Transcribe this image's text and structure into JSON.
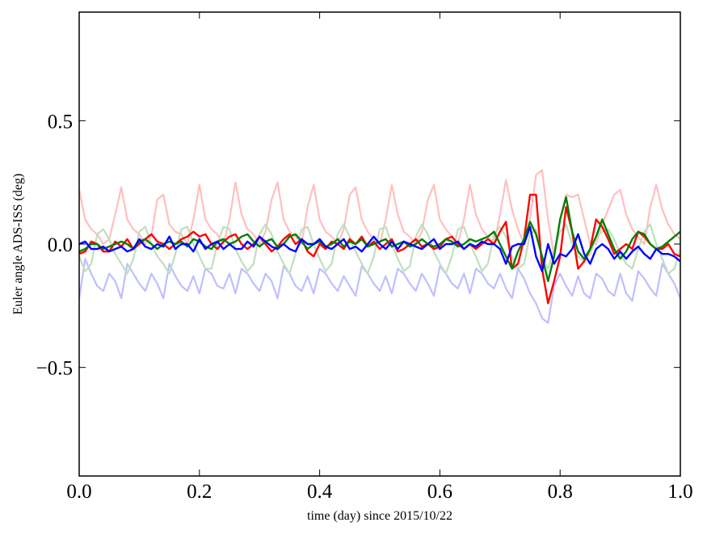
{
  "chart_data": {
    "type": "line",
    "title": "",
    "xlabel": "time (day) since 2015/10/22",
    "ylabel": "Euler angle ADS-ISS (deg)",
    "xlim": [
      0.0,
      1.0
    ],
    "ylim": [
      -0.94,
      0.94
    ],
    "grid": false,
    "x_ticks": [
      0.0,
      0.2,
      0.4,
      0.6,
      0.8,
      1.0
    ],
    "x_tick_labels": [
      "0.0",
      "0.2",
      "0.4",
      "0.6",
      "0.8",
      "1.0"
    ],
    "y_ticks": [
      -0.5,
      0.0,
      0.5
    ],
    "y_tick_labels": [
      "−0.5",
      "0.0",
      "0.5"
    ],
    "x_start": 0.0,
    "x_step": 0.01,
    "series": [
      {
        "name": "light-red",
        "color": "#ffbfbf",
        "values": [
          0.22,
          0.1,
          0.06,
          0.04,
          0.0,
          0.02,
          0.12,
          0.23,
          0.1,
          0.06,
          0.04,
          0.0,
          0.03,
          0.18,
          0.2,
          0.08,
          0.05,
          0.04,
          0.0,
          0.1,
          0.24,
          0.1,
          0.06,
          0.04,
          0.0,
          0.1,
          0.25,
          0.12,
          0.06,
          0.04,
          0.0,
          0.05,
          0.18,
          0.25,
          0.1,
          0.05,
          0.03,
          0.0,
          0.15,
          0.24,
          0.1,
          0.05,
          0.03,
          0.0,
          0.06,
          0.2,
          0.23,
          0.1,
          0.05,
          0.02,
          0.0,
          0.1,
          0.24,
          0.12,
          0.05,
          0.03,
          0.0,
          0.05,
          0.18,
          0.24,
          0.1,
          0.06,
          0.03,
          0.0,
          0.1,
          0.24,
          0.12,
          0.06,
          0.03,
          0.0,
          0.12,
          0.26,
          0.14,
          0.06,
          0.0,
          0.1,
          0.28,
          0.3,
          0.1,
          -0.05,
          0.1,
          0.2,
          0.19,
          0.2,
          0.1,
          0.0,
          0.0,
          0.08,
          0.14,
          0.2,
          0.22,
          0.12,
          0.06,
          0.03,
          0.0,
          0.15,
          0.24,
          0.14,
          0.08,
          0.04,
          0.02
        ]
      },
      {
        "name": "light-blue",
        "color": "#bfbfff",
        "values": [
          -0.22,
          -0.06,
          -0.12,
          -0.17,
          -0.19,
          -0.12,
          -0.15,
          -0.22,
          -0.08,
          -0.12,
          -0.16,
          -0.19,
          -0.12,
          -0.16,
          -0.22,
          -0.08,
          -0.13,
          -0.17,
          -0.19,
          -0.13,
          -0.2,
          -0.1,
          -0.12,
          -0.17,
          -0.18,
          -0.12,
          -0.2,
          -0.1,
          -0.12,
          -0.16,
          -0.19,
          -0.12,
          -0.15,
          -0.22,
          -0.09,
          -0.12,
          -0.17,
          -0.19,
          -0.13,
          -0.2,
          -0.1,
          -0.12,
          -0.16,
          -0.19,
          -0.13,
          -0.17,
          -0.21,
          -0.09,
          -0.12,
          -0.16,
          -0.19,
          -0.13,
          -0.2,
          -0.1,
          -0.12,
          -0.16,
          -0.19,
          -0.12,
          -0.16,
          -0.21,
          -0.09,
          -0.12,
          -0.16,
          -0.18,
          -0.12,
          -0.2,
          -0.1,
          -0.12,
          -0.16,
          -0.18,
          -0.12,
          -0.18,
          -0.22,
          -0.1,
          -0.14,
          -0.2,
          -0.24,
          -0.3,
          -0.32,
          -0.17,
          -0.12,
          -0.17,
          -0.21,
          -0.13,
          -0.2,
          -0.22,
          -0.12,
          -0.14,
          -0.19,
          -0.21,
          -0.12,
          -0.2,
          -0.23,
          -0.11,
          -0.14,
          -0.18,
          -0.21,
          -0.08,
          -0.12,
          -0.16,
          -0.22
        ]
      },
      {
        "name": "light-green",
        "color": "#bfdfbf",
        "values": [
          -0.05,
          -0.11,
          -0.08,
          0.04,
          0.06,
          0.02,
          -0.04,
          -0.08,
          -0.12,
          -0.06,
          0.05,
          0.07,
          0.0,
          -0.05,
          -0.08,
          -0.12,
          -0.04,
          0.06,
          0.07,
          0.0,
          -0.05,
          -0.1,
          -0.1,
          0.0,
          0.07,
          0.06,
          -0.02,
          -0.07,
          -0.11,
          -0.08,
          0.04,
          0.08,
          0.04,
          -0.03,
          -0.08,
          -0.12,
          -0.04,
          0.06,
          0.07,
          0.0,
          -0.06,
          -0.11,
          -0.08,
          0.04,
          0.08,
          0.03,
          -0.03,
          -0.08,
          -0.12,
          -0.05,
          0.06,
          0.07,
          0.0,
          -0.06,
          -0.11,
          -0.09,
          0.03,
          0.08,
          0.04,
          -0.03,
          -0.08,
          -0.12,
          -0.05,
          0.06,
          0.07,
          0.0,
          -0.05,
          -0.11,
          -0.08,
          0.04,
          0.07,
          0.03,
          -0.05,
          -0.1,
          -0.08,
          0.04,
          0.06,
          -0.05,
          -0.1,
          -0.02,
          0.05,
          0.08,
          0.0,
          -0.05,
          -0.07,
          -0.04,
          0.03,
          0.05,
          0.06,
          0.02,
          -0.04,
          -0.08,
          -0.1,
          -0.02,
          0.05,
          0.08,
          0.0,
          -0.06,
          -0.12,
          -0.1,
          -0.02
        ]
      },
      {
        "name": "red",
        "color": "#ff0000",
        "values": [
          -0.04,
          -0.03,
          0.01,
          0.0,
          -0.03,
          -0.03,
          0.01,
          -0.01,
          0.02,
          -0.02,
          0.0,
          0.02,
          0.04,
          0.01,
          0.0,
          -0.02,
          0.0,
          0.02,
          0.03,
          0.05,
          0.03,
          0.04,
          0.0,
          -0.02,
          0.01,
          0.03,
          0.04,
          0.0,
          -0.02,
          0.0,
          0.03,
          0.0,
          -0.03,
          -0.01,
          0.02,
          0.04,
          0.0,
          0.02,
          -0.03,
          -0.05,
          0.0,
          -0.02,
          0.01,
          0.0,
          -0.02,
          0.02,
          0.0,
          0.03,
          -0.01,
          0.01,
          -0.02,
          0.0,
          0.02,
          -0.03,
          -0.02,
          0.0,
          0.02,
          -0.01,
          0.0,
          -0.02,
          -0.01,
          0.02,
          0.03,
          0.0,
          -0.02,
          0.0,
          -0.02,
          0.0,
          0.02,
          0.0,
          0.05,
          0.09,
          -0.1,
          -0.08,
          0.02,
          0.2,
          0.2,
          -0.1,
          -0.24,
          -0.15,
          -0.05,
          0.15,
          0.05,
          -0.1,
          -0.07,
          -0.02,
          0.1,
          0.07,
          0.02,
          -0.04,
          -0.02,
          0.0,
          -0.02,
          0.05,
          0.03,
          0.0,
          -0.02,
          -0.02,
          0.0,
          -0.04,
          -0.05
        ]
      },
      {
        "name": "green",
        "color": "#008000",
        "values": [
          -0.03,
          -0.02,
          0.0,
          0.0,
          -0.02,
          -0.01,
          0.0,
          0.01,
          0.0,
          -0.02,
          0.01,
          0.02,
          0.0,
          -0.02,
          0.0,
          0.01,
          0.0,
          0.01,
          -0.01,
          0.02,
          0.01,
          -0.01,
          -0.02,
          0.01,
          0.02,
          0.0,
          0.01,
          0.03,
          0.04,
          0.01,
          -0.01,
          0.01,
          0.02,
          -0.01,
          0.0,
          0.03,
          0.04,
          0.01,
          -0.02,
          0.0,
          0.01,
          -0.01,
          0.0,
          0.02,
          -0.01,
          0.01,
          0.0,
          0.02,
          -0.01,
          0.0,
          0.01,
          0.02,
          -0.01,
          0.0,
          0.01,
          -0.01,
          0.0,
          0.02,
          0.0,
          -0.01,
          0.0,
          0.02,
          0.01,
          -0.01,
          0.0,
          0.02,
          0.01,
          0.02,
          0.03,
          0.05,
          0.0,
          -0.05,
          -0.1,
          -0.03,
          0.02,
          0.09,
          0.04,
          -0.05,
          -0.15,
          -0.05,
          0.1,
          0.19,
          0.05,
          -0.03,
          -0.06,
          -0.02,
          0.03,
          0.1,
          0.04,
          -0.02,
          -0.06,
          -0.03,
          0.02,
          0.05,
          0.04,
          0.0,
          -0.02,
          -0.01,
          0.01,
          0.03,
          0.05
        ]
      },
      {
        "name": "blue",
        "color": "#0000ff",
        "values": [
          0.0,
          0.01,
          -0.02,
          -0.02,
          -0.01,
          -0.03,
          -0.02,
          -0.01,
          -0.03,
          -0.02,
          0.02,
          -0.01,
          -0.02,
          0.0,
          -0.01,
          0.03,
          -0.02,
          0.0,
          0.0,
          -0.03,
          0.02,
          -0.02,
          0.0,
          0.01,
          -0.02,
          0.0,
          -0.02,
          -0.02,
          0.01,
          -0.01,
          0.03,
          0.01,
          -0.01,
          -0.02,
          0.0,
          -0.02,
          -0.03,
          0.02,
          0.0,
          0.0,
          0.02,
          -0.01,
          -0.02,
          0.0,
          0.02,
          -0.02,
          -0.01,
          -0.03,
          0.0,
          0.03,
          0.0,
          -0.02,
          0.01,
          -0.02,
          0.01,
          0.0,
          -0.01,
          -0.02,
          0.0,
          0.02,
          -0.02,
          0.0,
          0.0,
          0.01,
          -0.02,
          0.0,
          -0.01,
          0.01,
          0.0,
          0.0,
          -0.02,
          -0.08,
          -0.01,
          0.0,
          0.0,
          0.07,
          -0.05,
          -0.11,
          0.0,
          -0.08,
          -0.04,
          -0.05,
          -0.02,
          0.04,
          -0.04,
          -0.08,
          -0.02,
          0.0,
          -0.02,
          -0.06,
          -0.03,
          -0.06,
          -0.03,
          -0.01,
          -0.04,
          -0.06,
          -0.02,
          -0.04,
          -0.04,
          -0.05,
          -0.07
        ]
      }
    ]
  }
}
